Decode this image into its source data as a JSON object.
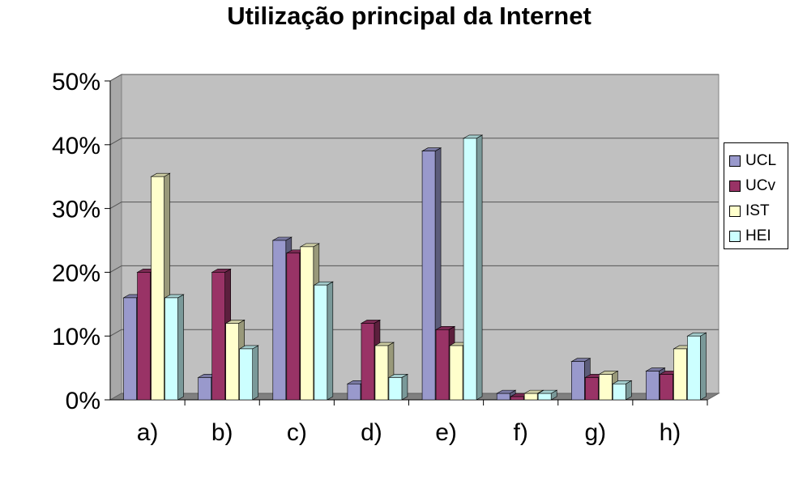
{
  "chart_data": {
    "type": "bar",
    "title": "Utilização principal da Internet",
    "categories": [
      "a)",
      "b)",
      "c)",
      "d)",
      "e)",
      "f)",
      "g)",
      "h)"
    ],
    "y_ticks": [
      "0%",
      "10%",
      "20%",
      "30%",
      "40%",
      "50%"
    ],
    "ylim": [
      0,
      50
    ],
    "grid": true,
    "legend_position": "right",
    "series": [
      {
        "name": "UCL",
        "color": "#9999CC",
        "values": [
          16,
          3.5,
          25,
          2.5,
          39,
          1,
          6,
          4.5
        ]
      },
      {
        "name": "UCv",
        "color": "#993366",
        "values": [
          20,
          20,
          23,
          12,
          11,
          0.5,
          3.5,
          4
        ]
      },
      {
        "name": "IST",
        "color": "#FFFFCC",
        "values": [
          35,
          12,
          24,
          8.5,
          8.5,
          1,
          4,
          8
        ]
      },
      {
        "name": "HEI",
        "color": "#CCFFFF",
        "values": [
          16,
          8,
          18,
          3.5,
          41,
          1,
          2.5,
          10
        ]
      }
    ]
  }
}
